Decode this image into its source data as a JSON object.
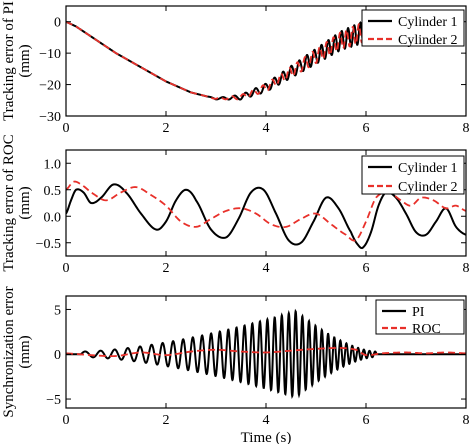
{
  "colors": {
    "series_a": "#000000",
    "series_b": "#e8302a",
    "axes": "#000000",
    "background": "#ffffff"
  },
  "chart_data": [
    {
      "type": "line",
      "ylabel": "Tracking error of PI (mm)",
      "xlim": [
        0,
        8
      ],
      "ylim": [
        -30,
        5
      ],
      "x_ticks": [
        0,
        2,
        4,
        6,
        8
      ],
      "y_ticks": [
        0,
        -10,
        -20,
        -30
      ],
      "grid": false,
      "legend": "top-right",
      "series": [
        {
          "name": "Cylinder 1",
          "style": "solid",
          "envelope": {
            "x": [
              0,
              0.2,
              1,
              2,
              2.5,
              3,
              3.5,
              4,
              4.5,
              5,
              5.5,
              6
            ],
            "y": [
              0,
              -1.5,
              -10,
              -19,
              -22.5,
              -24.5,
              -24,
              -21,
              -16,
              -11,
              -6,
              -3
            ]
          },
          "oscillation": {
            "start": 2.8,
            "end": 6.0,
            "freq_hz": [
              3.5,
              6
            ],
            "amp_mm": [
              0,
              3.5
            ]
          }
        },
        {
          "name": "Cylinder 2",
          "style": "dashed",
          "envelope": {
            "x": [
              0,
              0.2,
              1,
              2,
              2.5,
              3,
              3.5,
              4,
              4.5,
              5,
              5.5,
              6
            ],
            "y": [
              0,
              -1.5,
              -10,
              -19,
              -22.5,
              -24.5,
              -24,
              -21,
              -16,
              -11,
              -6,
              -3
            ]
          },
          "oscillation": {
            "start": 2.8,
            "end": 6.0,
            "freq_hz": [
              3.5,
              6
            ],
            "amp_mm": [
              0,
              3.2
            ],
            "phase": 1.6
          }
        }
      ]
    },
    {
      "type": "line",
      "ylabel": "Tracking error of ROC (mm)",
      "xlim": [
        0,
        8
      ],
      "ylim": [
        -0.75,
        1.25
      ],
      "x_ticks": [
        0,
        2,
        4,
        6,
        8
      ],
      "y_ticks": [
        1,
        0.5,
        0,
        -0.5
      ],
      "y_tick_labels": [
        "1.0",
        "0.5",
        "0.0",
        "−0.5"
      ],
      "grid": false,
      "legend": "top-right",
      "series": [
        {
          "name": "Cylinder 1",
          "style": "solid",
          "x": [
            0,
            0.1,
            0.2,
            0.35,
            0.5,
            0.7,
            0.95,
            1.2,
            1.5,
            1.8,
            2.0,
            2.2,
            2.4,
            2.6,
            2.9,
            3.2,
            3.45,
            3.7,
            3.95,
            4.2,
            4.45,
            4.7,
            4.95,
            5.2,
            5.45,
            5.7,
            5.85,
            5.95,
            6.1,
            6.25,
            6.4,
            6.6,
            6.8,
            7.0,
            7.2,
            7.4,
            7.6,
            7.8,
            8.0
          ],
          "y": [
            0.05,
            0.3,
            0.5,
            0.45,
            0.25,
            0.35,
            0.6,
            0.45,
            0.05,
            -0.25,
            -0.1,
            0.3,
            0.5,
            0.3,
            -0.25,
            -0.4,
            -0.05,
            0.45,
            0.5,
            0.05,
            -0.45,
            -0.5,
            -0.1,
            0.35,
            0.15,
            -0.3,
            -0.55,
            -0.58,
            -0.3,
            0.2,
            0.45,
            0.35,
            0.05,
            -0.3,
            -0.35,
            -0.1,
            0.15,
            -0.2,
            -0.35
          ]
        },
        {
          "name": "Cylinder 2",
          "style": "dashed",
          "x": [
            0,
            0.15,
            0.3,
            0.5,
            0.8,
            1.1,
            1.4,
            1.7,
            2.0,
            2.3,
            2.6,
            2.9,
            3.2,
            3.5,
            3.8,
            4.1,
            4.4,
            4.7,
            5.0,
            5.3,
            5.6,
            5.8,
            6.0,
            6.2,
            6.45,
            6.7,
            6.9,
            7.1,
            7.35,
            7.6,
            7.8,
            8.0
          ],
          "y": [
            0.5,
            0.65,
            0.6,
            0.45,
            0.3,
            0.45,
            0.55,
            0.4,
            0.2,
            -0.1,
            -0.2,
            -0.05,
            0.1,
            0.15,
            0.05,
            -0.15,
            -0.2,
            -0.05,
            0.05,
            -0.15,
            -0.35,
            -0.45,
            -0.1,
            0.35,
            0.45,
            0.3,
            0.2,
            0.35,
            0.3,
            0.15,
            0.2,
            0.1
          ]
        }
      ]
    },
    {
      "type": "line",
      "ylabel": "Synchronization error (mm)",
      "xlabel": "Time (s)",
      "xlim": [
        0,
        8
      ],
      "ylim": [
        -6,
        6.5
      ],
      "x_ticks": [
        0,
        2,
        4,
        6,
        8
      ],
      "y_ticks": [
        5,
        0,
        -5
      ],
      "grid": false,
      "legend": "top-right",
      "series": [
        {
          "name": "PI",
          "style": "solid",
          "envelope": {
            "x": [
              0,
              6,
              8
            ],
            "y": [
              0,
              0,
              0
            ]
          },
          "oscillation": {
            "start": 0.3,
            "end": 6.2,
            "freq_hz": [
              3,
              6
            ],
            "amp_mm": [
              0.3,
              4.8
            ],
            "peak_x": 4.6
          }
        },
        {
          "name": "ROC",
          "style": "dashed",
          "x": [
            0,
            0.5,
            1.0,
            1.5,
            2.0,
            2.5,
            3.0,
            3.5,
            4.0,
            4.5,
            5.0,
            5.5,
            5.8,
            6.0,
            6.3,
            6.8,
            7.2,
            7.6,
            8.0
          ],
          "y": [
            0.1,
            -0.1,
            -0.2,
            0.2,
            -0.1,
            0.3,
            0.5,
            0.3,
            0.2,
            0.4,
            0.6,
            0.7,
            0.5,
            -0.1,
            0.1,
            0.2,
            0.1,
            0.2,
            0.1
          ]
        }
      ]
    }
  ]
}
